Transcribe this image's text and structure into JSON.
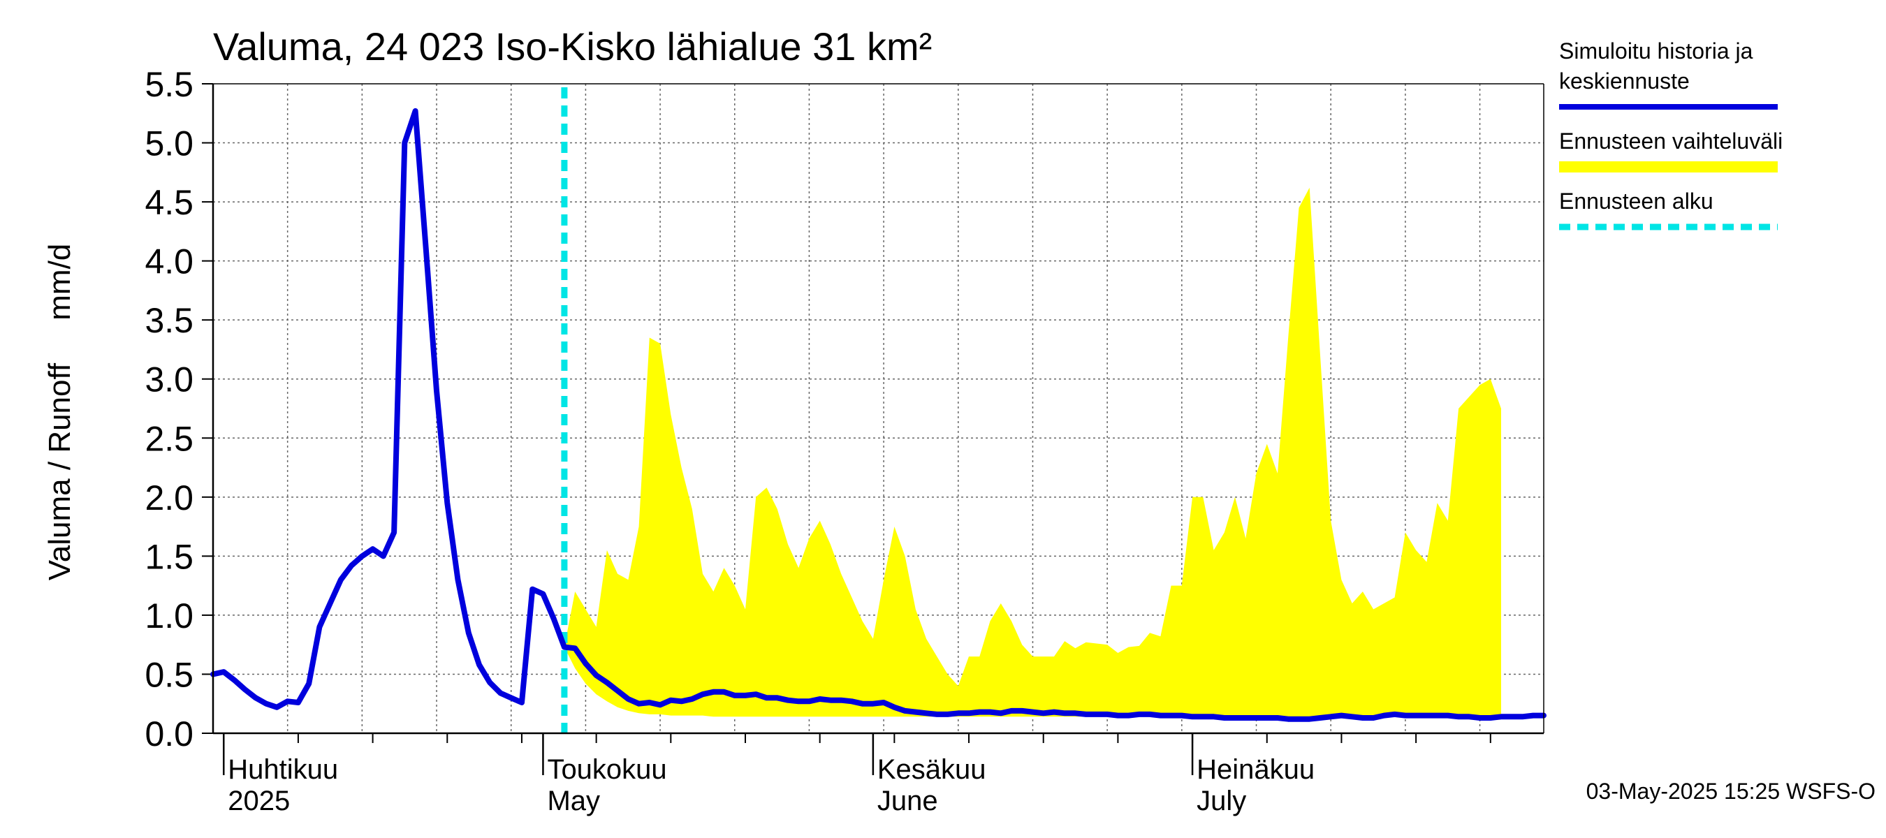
{
  "chart_data": {
    "type": "area",
    "title": "Valuma, 24 023 Iso-Kisko lähialue 31 km²",
    "ylabel": "Valuma / Runoff     mm/d",
    "ylim": [
      0,
      5.5
    ],
    "yticks": [
      0.0,
      0.5,
      1.0,
      1.5,
      2.0,
      2.5,
      3.0,
      3.5,
      4.0,
      4.5,
      5.0,
      5.5
    ],
    "ytick_labels": [
      "0.0",
      "0.5",
      "1.0",
      "1.5",
      "2.0",
      "2.5",
      "3.0",
      "3.5",
      "4.0",
      "4.5",
      "5.0",
      "5.5"
    ],
    "xlim": [
      "2025-03-31",
      "2025-08-03"
    ],
    "grid": true,
    "month_labels": [
      {
        "date": "2025-04-01",
        "fi": "Huhtikuu",
        "en": "2025"
      },
      {
        "date": "2025-05-01",
        "fi": "Toukokuu",
        "en": "May"
      },
      {
        "date": "2025-06-01",
        "fi": "Kesäkuu",
        "en": "June"
      },
      {
        "date": "2025-07-01",
        "fi": "Heinäkuu",
        "en": "July"
      }
    ],
    "forecast_start": "2025-05-03",
    "legend": {
      "position": "top-right",
      "entries": [
        {
          "label": "Simuloitu historia ja keskiennuste",
          "lines": [
            "Simuloitu historia ja",
            "keskiennuste"
          ],
          "color": "#0000dd",
          "style": "solid"
        },
        {
          "label": "Ennusteen vaihteluväli",
          "lines": [
            "Ennusteen vaihteluväli"
          ],
          "color": "#ffff00",
          "style": "band"
        },
        {
          "label": "Ennusteen alku",
          "lines": [
            "Ennusteen alku"
          ],
          "color": "#00e5e5",
          "style": "dashed"
        }
      ]
    },
    "footer": "03-May-2025 15:25 WSFS-O",
    "series": [
      {
        "name": "Simuloitu historia ja keskiennuste",
        "color": "#0000dd",
        "points": [
          [
            "2025-03-31",
            0.5
          ],
          [
            "2025-04-01",
            0.52
          ],
          [
            "2025-04-02",
            0.45
          ],
          [
            "2025-04-03",
            0.37
          ],
          [
            "2025-04-04",
            0.3
          ],
          [
            "2025-04-05",
            0.25
          ],
          [
            "2025-04-06",
            0.22
          ],
          [
            "2025-04-07",
            0.27
          ],
          [
            "2025-04-08",
            0.26
          ],
          [
            "2025-04-09",
            0.42
          ],
          [
            "2025-04-10",
            0.9
          ],
          [
            "2025-04-11",
            1.1
          ],
          [
            "2025-04-12",
            1.3
          ],
          [
            "2025-04-13",
            1.42
          ],
          [
            "2025-04-14",
            1.5
          ],
          [
            "2025-04-15",
            1.56
          ],
          [
            "2025-04-16",
            1.5
          ],
          [
            "2025-04-17",
            1.7
          ],
          [
            "2025-04-18",
            5.0
          ],
          [
            "2025-04-19",
            5.27
          ],
          [
            "2025-04-20",
            4.1
          ],
          [
            "2025-04-21",
            2.9
          ],
          [
            "2025-04-22",
            1.95
          ],
          [
            "2025-04-23",
            1.3
          ],
          [
            "2025-04-24",
            0.85
          ],
          [
            "2025-04-25",
            0.58
          ],
          [
            "2025-04-26",
            0.43
          ],
          [
            "2025-04-27",
            0.34
          ],
          [
            "2025-04-28",
            0.3
          ],
          [
            "2025-04-29",
            0.26
          ],
          [
            "2025-04-30",
            1.22
          ],
          [
            "2025-05-01",
            1.18
          ],
          [
            "2025-05-02",
            0.97
          ],
          [
            "2025-05-03",
            0.73
          ],
          [
            "2025-05-04",
            0.72
          ],
          [
            "2025-05-05",
            0.59
          ],
          [
            "2025-05-06",
            0.49
          ],
          [
            "2025-05-07",
            0.43
          ],
          [
            "2025-05-08",
            0.36
          ],
          [
            "2025-05-09",
            0.29
          ],
          [
            "2025-05-10",
            0.25
          ],
          [
            "2025-05-11",
            0.26
          ],
          [
            "2025-05-12",
            0.24
          ],
          [
            "2025-05-13",
            0.28
          ],
          [
            "2025-05-14",
            0.27
          ],
          [
            "2025-05-15",
            0.29
          ],
          [
            "2025-05-16",
            0.33
          ],
          [
            "2025-05-17",
            0.35
          ],
          [
            "2025-05-18",
            0.35
          ],
          [
            "2025-05-19",
            0.32
          ],
          [
            "2025-05-20",
            0.32
          ],
          [
            "2025-05-21",
            0.33
          ],
          [
            "2025-05-22",
            0.3
          ],
          [
            "2025-05-23",
            0.3
          ],
          [
            "2025-05-24",
            0.28
          ],
          [
            "2025-05-25",
            0.27
          ],
          [
            "2025-05-26",
            0.27
          ],
          [
            "2025-05-27",
            0.29
          ],
          [
            "2025-05-28",
            0.28
          ],
          [
            "2025-05-29",
            0.28
          ],
          [
            "2025-05-30",
            0.27
          ],
          [
            "2025-05-31",
            0.25
          ],
          [
            "2025-06-01",
            0.25
          ],
          [
            "2025-06-02",
            0.26
          ],
          [
            "2025-06-03",
            0.22
          ],
          [
            "2025-06-04",
            0.19
          ],
          [
            "2025-06-05",
            0.18
          ],
          [
            "2025-06-06",
            0.17
          ],
          [
            "2025-06-07",
            0.16
          ],
          [
            "2025-06-08",
            0.16
          ],
          [
            "2025-06-09",
            0.17
          ],
          [
            "2025-06-10",
            0.17
          ],
          [
            "2025-06-11",
            0.18
          ],
          [
            "2025-06-12",
            0.18
          ],
          [
            "2025-06-13",
            0.17
          ],
          [
            "2025-06-14",
            0.19
          ],
          [
            "2025-06-15",
            0.19
          ],
          [
            "2025-06-16",
            0.18
          ],
          [
            "2025-06-17",
            0.17
          ],
          [
            "2025-06-18",
            0.18
          ],
          [
            "2025-06-19",
            0.17
          ],
          [
            "2025-06-20",
            0.17
          ],
          [
            "2025-06-21",
            0.16
          ],
          [
            "2025-06-22",
            0.16
          ],
          [
            "2025-06-23",
            0.16
          ],
          [
            "2025-06-24",
            0.15
          ],
          [
            "2025-06-25",
            0.15
          ],
          [
            "2025-06-26",
            0.16
          ],
          [
            "2025-06-27",
            0.16
          ],
          [
            "2025-06-28",
            0.15
          ],
          [
            "2025-06-29",
            0.15
          ],
          [
            "2025-06-30",
            0.15
          ],
          [
            "2025-07-01",
            0.14
          ],
          [
            "2025-07-02",
            0.14
          ],
          [
            "2025-07-03",
            0.14
          ],
          [
            "2025-07-04",
            0.13
          ],
          [
            "2025-07-05",
            0.13
          ],
          [
            "2025-07-06",
            0.13
          ],
          [
            "2025-07-07",
            0.13
          ],
          [
            "2025-07-08",
            0.13
          ],
          [
            "2025-07-09",
            0.13
          ],
          [
            "2025-07-10",
            0.12
          ],
          [
            "2025-07-11",
            0.12
          ],
          [
            "2025-07-12",
            0.12
          ],
          [
            "2025-07-13",
            0.13
          ],
          [
            "2025-07-14",
            0.14
          ],
          [
            "2025-07-15",
            0.15
          ],
          [
            "2025-07-16",
            0.14
          ],
          [
            "2025-07-17",
            0.13
          ],
          [
            "2025-07-18",
            0.13
          ],
          [
            "2025-07-19",
            0.15
          ],
          [
            "2025-07-20",
            0.16
          ],
          [
            "2025-07-21",
            0.15
          ],
          [
            "2025-07-22",
            0.15
          ],
          [
            "2025-07-23",
            0.15
          ],
          [
            "2025-07-24",
            0.15
          ],
          [
            "2025-07-25",
            0.15
          ],
          [
            "2025-07-26",
            0.14
          ],
          [
            "2025-07-27",
            0.14
          ],
          [
            "2025-07-28",
            0.13
          ],
          [
            "2025-07-29",
            0.13
          ],
          [
            "2025-07-30",
            0.14
          ],
          [
            "2025-07-31",
            0.14
          ],
          [
            "2025-08-01",
            0.14
          ],
          [
            "2025-08-02",
            0.15
          ],
          [
            "2025-08-03",
            0.15
          ]
        ]
      },
      {
        "name": "Ennusteen vaihteluväli",
        "color": "#ffff00",
        "points": [
          [
            "2025-05-03",
            0.73,
            0.73
          ],
          [
            "2025-05-04",
            0.55,
            1.2
          ],
          [
            "2025-05-05",
            0.42,
            1.05
          ],
          [
            "2025-05-06",
            0.33,
            0.9
          ],
          [
            "2025-05-07",
            0.27,
            1.55
          ],
          [
            "2025-05-08",
            0.22,
            1.35
          ],
          [
            "2025-05-09",
            0.19,
            1.3
          ],
          [
            "2025-05-10",
            0.17,
            1.75
          ],
          [
            "2025-05-11",
            0.16,
            3.35
          ],
          [
            "2025-05-12",
            0.16,
            3.3
          ],
          [
            "2025-05-13",
            0.15,
            2.7
          ],
          [
            "2025-05-14",
            0.15,
            2.25
          ],
          [
            "2025-05-15",
            0.15,
            1.9
          ],
          [
            "2025-05-16",
            0.15,
            1.35
          ],
          [
            "2025-05-17",
            0.14,
            1.2
          ],
          [
            "2025-05-18",
            0.14,
            1.4
          ],
          [
            "2025-05-19",
            0.14,
            1.25
          ],
          [
            "2025-05-20",
            0.14,
            1.05
          ],
          [
            "2025-05-21",
            0.14,
            2.0
          ],
          [
            "2025-05-22",
            0.14,
            2.08
          ],
          [
            "2025-05-23",
            0.14,
            1.9
          ],
          [
            "2025-05-24",
            0.14,
            1.6
          ],
          [
            "2025-05-25",
            0.14,
            1.4
          ],
          [
            "2025-05-26",
            0.14,
            1.65
          ],
          [
            "2025-05-27",
            0.14,
            1.8
          ],
          [
            "2025-05-28",
            0.14,
            1.6
          ],
          [
            "2025-05-29",
            0.14,
            1.35
          ],
          [
            "2025-05-30",
            0.14,
            1.15
          ],
          [
            "2025-05-31",
            0.14,
            0.95
          ],
          [
            "2025-06-01",
            0.14,
            0.8
          ],
          [
            "2025-06-02",
            0.14,
            1.3
          ],
          [
            "2025-06-03",
            0.14,
            1.75
          ],
          [
            "2025-06-04",
            0.14,
            1.5
          ],
          [
            "2025-06-05",
            0.14,
            1.05
          ],
          [
            "2025-06-06",
            0.14,
            0.8
          ],
          [
            "2025-06-07",
            0.14,
            0.65
          ],
          [
            "2025-06-08",
            0.14,
            0.5
          ],
          [
            "2025-06-09",
            0.14,
            0.4
          ],
          [
            "2025-06-10",
            0.14,
            0.65
          ],
          [
            "2025-06-11",
            0.14,
            0.65
          ],
          [
            "2025-06-12",
            0.14,
            0.95
          ],
          [
            "2025-06-13",
            0.14,
            1.1
          ],
          [
            "2025-06-14",
            0.14,
            0.95
          ],
          [
            "2025-06-15",
            0.14,
            0.75
          ],
          [
            "2025-06-16",
            0.14,
            0.65
          ],
          [
            "2025-06-17",
            0.14,
            0.65
          ],
          [
            "2025-06-18",
            0.14,
            0.65
          ],
          [
            "2025-06-19",
            0.14,
            0.78
          ],
          [
            "2025-06-20",
            0.14,
            0.72
          ],
          [
            "2025-06-21",
            0.14,
            0.77
          ],
          [
            "2025-06-22",
            0.14,
            0.76
          ],
          [
            "2025-06-23",
            0.14,
            0.75
          ],
          [
            "2025-06-24",
            0.14,
            0.68
          ],
          [
            "2025-06-25",
            0.14,
            0.73
          ],
          [
            "2025-06-26",
            0.14,
            0.74
          ],
          [
            "2025-06-27",
            0.14,
            0.85
          ],
          [
            "2025-06-28",
            0.14,
            0.82
          ],
          [
            "2025-06-29",
            0.14,
            1.25
          ],
          [
            "2025-06-30",
            0.14,
            1.25
          ],
          [
            "2025-07-01",
            0.14,
            2.0
          ],
          [
            "2025-07-02",
            0.14,
            2.0
          ],
          [
            "2025-07-03",
            0.14,
            1.55
          ],
          [
            "2025-07-04",
            0.14,
            1.7
          ],
          [
            "2025-07-05",
            0.14,
            2.0
          ],
          [
            "2025-07-06",
            0.14,
            1.65
          ],
          [
            "2025-07-07",
            0.14,
            2.2
          ],
          [
            "2025-07-08",
            0.14,
            2.45
          ],
          [
            "2025-07-09",
            0.14,
            2.2
          ],
          [
            "2025-07-10",
            0.14,
            3.35
          ],
          [
            "2025-07-11",
            0.14,
            4.45
          ],
          [
            "2025-07-12",
            0.14,
            4.62
          ],
          [
            "2025-07-13",
            0.14,
            3.2
          ],
          [
            "2025-07-14",
            0.14,
            1.8
          ],
          [
            "2025-07-15",
            0.14,
            1.3
          ],
          [
            "2025-07-16",
            0.14,
            1.1
          ],
          [
            "2025-07-17",
            0.14,
            1.2
          ],
          [
            "2025-07-18",
            0.14,
            1.05
          ],
          [
            "2025-07-19",
            0.14,
            1.1
          ],
          [
            "2025-07-20",
            0.14,
            1.15
          ],
          [
            "2025-07-21",
            0.14,
            1.7
          ],
          [
            "2025-07-22",
            0.14,
            1.55
          ],
          [
            "2025-07-23",
            0.14,
            1.45
          ],
          [
            "2025-07-24",
            0.14,
            1.95
          ],
          [
            "2025-07-25",
            0.14,
            1.8
          ],
          [
            "2025-07-26",
            0.14,
            2.75
          ],
          [
            "2025-07-27",
            0.14,
            2.85
          ],
          [
            "2025-07-28",
            0.14,
            2.95
          ],
          [
            "2025-07-29",
            0.14,
            3.0
          ],
          [
            "2025-07-30",
            0.14,
            2.75
          ]
        ]
      }
    ]
  }
}
